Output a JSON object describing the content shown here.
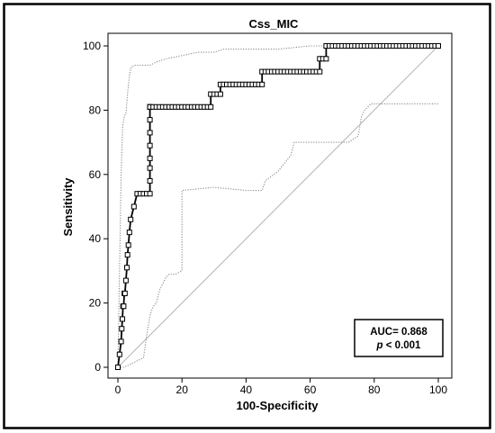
{
  "chart_data": {
    "type": "line",
    "title": "Css_MIC",
    "xlabel": "100-Specificity",
    "ylabel": "Sensitivity",
    "xlim": [
      0,
      100
    ],
    "ylim": [
      0,
      100
    ],
    "xticks": [
      0,
      20,
      40,
      60,
      80,
      100
    ],
    "yticks": [
      0,
      20,
      40,
      60,
      80,
      100
    ],
    "grid": false,
    "annotation": {
      "auc_text": "AUC= 0.868",
      "p_label": "p",
      "p_value": " < 0.001",
      "placement": "bottom-right"
    },
    "series": [
      {
        "role": "roc",
        "style": "solid-with-square-markers",
        "x": [
          0,
          0.5,
          1,
          1.2,
          1.4,
          1.6,
          1.8,
          2,
          2.2,
          2.5,
          2.8,
          3,
          3.3,
          3.6,
          4,
          5,
          6,
          7,
          8,
          9,
          10,
          10,
          10,
          10,
          10,
          10,
          10,
          10,
          10,
          10,
          10,
          11,
          12,
          13,
          14,
          15,
          16,
          17,
          18,
          19,
          20,
          21,
          22,
          23,
          24,
          25,
          26,
          27,
          28,
          29,
          29,
          30,
          31,
          32,
          32,
          33,
          34,
          35,
          36,
          37,
          38,
          39,
          40,
          41,
          42,
          43,
          44,
          45,
          45,
          46,
          47,
          48,
          49,
          50,
          51,
          52,
          53,
          54,
          55,
          56,
          57,
          58,
          59,
          60,
          61,
          62,
          63,
          63,
          64,
          65,
          65,
          66,
          67,
          68,
          69,
          70,
          71,
          72,
          73,
          74,
          75,
          76,
          77,
          78,
          79,
          80,
          81,
          82,
          83,
          84,
          85,
          86,
          87,
          88,
          89,
          90,
          91,
          92,
          93,
          94,
          95,
          96,
          97,
          98,
          99,
          100
        ],
        "y": [
          0,
          4,
          8,
          12,
          15,
          19,
          19,
          23,
          23,
          27,
          31,
          35,
          38,
          42,
          46,
          50,
          54,
          54,
          54,
          54,
          54,
          58,
          62,
          65,
          69,
          73,
          77,
          81,
          81,
          81,
          81,
          81,
          81,
          81,
          81,
          81,
          81,
          81,
          81,
          81,
          81,
          81,
          81,
          81,
          81,
          81,
          81,
          81,
          81,
          81,
          85,
          85,
          85,
          85,
          88,
          88,
          88,
          88,
          88,
          88,
          88,
          88,
          88,
          88,
          88,
          88,
          88,
          88,
          92,
          92,
          92,
          92,
          92,
          92,
          92,
          92,
          92,
          92,
          92,
          92,
          92,
          92,
          92,
          92,
          92,
          92,
          92,
          96,
          96,
          96,
          100,
          100,
          100,
          100,
          100,
          100,
          100,
          100,
          100,
          100,
          100,
          100,
          100,
          100,
          100,
          100,
          100,
          100,
          100,
          100,
          100,
          100,
          100,
          100,
          100,
          100,
          100,
          100,
          100,
          100,
          100,
          100,
          100,
          100,
          100,
          100
        ]
      },
      {
        "role": "upper-confidence-bound",
        "style": "dotted",
        "x": [
          0,
          0.5,
          1,
          1.5,
          2,
          2.5,
          3,
          3.5,
          4,
          5,
          6,
          8,
          10,
          12,
          15,
          20,
          25,
          30,
          33,
          40,
          50,
          60,
          70,
          80,
          90,
          100
        ],
        "y": [
          0,
          30,
          60,
          75,
          78,
          79,
          85,
          90,
          93,
          94,
          94,
          94,
          94,
          95,
          96,
          97,
          98,
          98,
          99,
          99,
          99,
          100,
          100,
          100,
          100,
          100
        ]
      },
      {
        "role": "lower-confidence-bound",
        "style": "dotted",
        "x": [
          0,
          2,
          4,
          6,
          8,
          9,
          10,
          11,
          12,
          13,
          14,
          15,
          16,
          18,
          20,
          20,
          30,
          40,
          45,
          46,
          50,
          54,
          55,
          58,
          60,
          65,
          70,
          72,
          75,
          76,
          77,
          78,
          79,
          80,
          90,
          95,
          100
        ],
        "y": [
          0,
          0,
          1,
          2,
          3,
          10,
          16,
          19,
          20,
          24,
          26,
          28,
          29,
          29,
          30,
          55,
          56,
          55,
          55,
          58,
          61,
          66,
          70,
          70,
          70,
          70,
          70,
          70,
          72,
          78,
          80,
          81,
          82,
          82,
          82,
          82,
          82
        ]
      },
      {
        "role": "chance-diagonal",
        "style": "thin",
        "x": [
          0,
          100
        ],
        "y": [
          0,
          100
        ]
      }
    ]
  }
}
